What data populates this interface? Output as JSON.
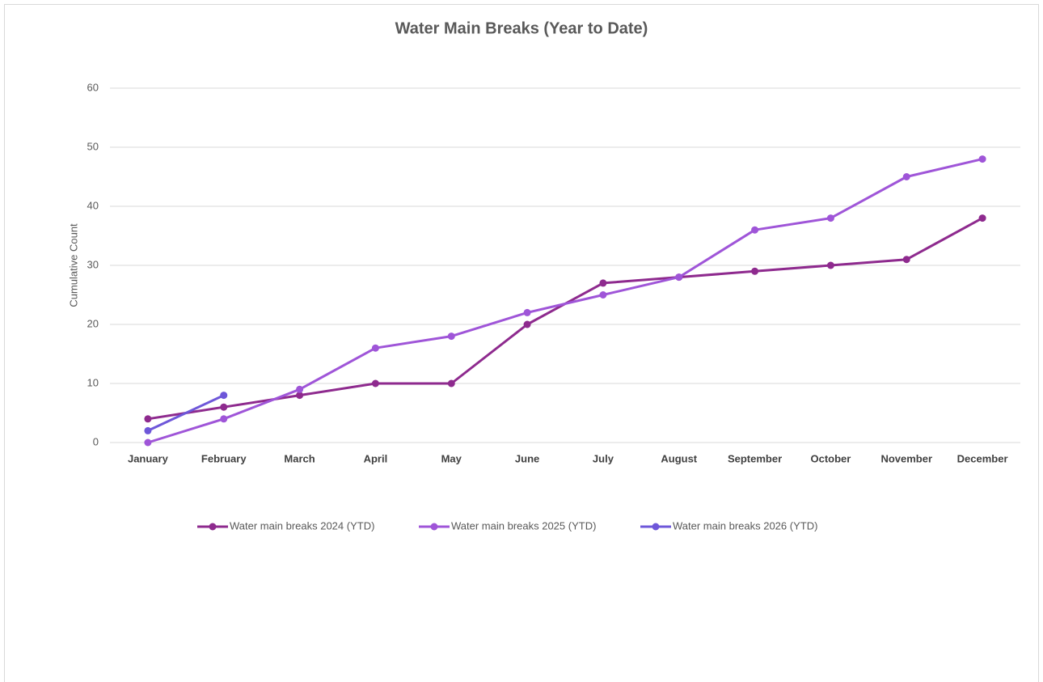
{
  "chart_data": {
    "type": "line",
    "title": "Water Main Breaks (Year to Date)",
    "y_label": "Cumulative Count",
    "categories": [
      "January",
      "February",
      "March",
      "April",
      "May",
      "June",
      "July",
      "August",
      "September",
      "October",
      "November",
      "December"
    ],
    "series": [
      {
        "name": "Water main breaks 2024 (YTD)",
        "color": "#8e2a8e",
        "values": [
          4,
          6,
          8,
          10,
          10,
          20,
          27,
          28,
          29,
          30,
          31,
          38
        ]
      },
      {
        "name": "Water main breaks 2025 (YTD)",
        "color": "#9f55d8",
        "values": [
          0,
          4,
          9,
          16,
          18,
          22,
          25,
          28,
          36,
          38,
          45,
          48
        ]
      },
      {
        "name": "Water main breaks 2026 (YTD)",
        "color": "#6e57d9",
        "values": [
          2,
          8,
          null,
          null,
          null,
          null,
          null,
          null,
          null,
          null,
          null,
          null
        ]
      }
    ],
    "ylim": [
      0,
      60
    ],
    "yticks": [
      0,
      10,
      20,
      30,
      40,
      50,
      60
    ],
    "grid": true,
    "legend": "bottom"
  }
}
